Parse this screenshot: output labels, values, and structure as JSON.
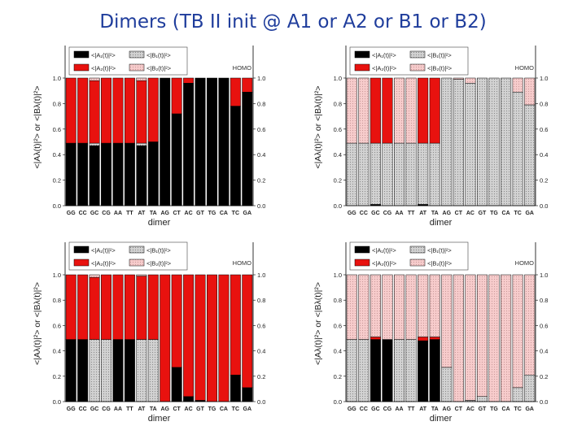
{
  "slide": {
    "title": "Dimers (TB II init @ A1 or A2 or B1 or B2)"
  },
  "colors": {
    "A1": "#000000",
    "A2": "#e8120f",
    "B1": "#c8c8c8",
    "B2": "#f6c3c3",
    "edge": "#000000"
  },
  "legend_labels": {
    "A1": "<|A₁(t)|²>",
    "B1": "<|B₁(t)|²>",
    "A2": "<|A₂(t)|²>",
    "B2": "<|B₂(t)|²>"
  },
  "corner_label": "HOMO",
  "chart_data": [
    {
      "type": "bar",
      "stacked": true,
      "xlabel": "dimer",
      "ylabel": "<|Aλ(t)|²> or <|Bλ(t)|²>",
      "ylim": [
        0,
        1.0
      ],
      "yticks": [
        "0.0",
        "0.2",
        "0.4",
        "0.6",
        "0.8",
        "1.0"
      ],
      "categories": [
        "GG",
        "CC",
        "GC",
        "CG",
        "AA",
        "TT",
        "AT",
        "TA",
        "AG",
        "CT",
        "AC",
        "GT",
        "TG",
        "CA",
        "TC",
        "GA"
      ],
      "series": [
        {
          "key": "A1",
          "values": [
            0.49,
            0.49,
            0.47,
            0.49,
            0.49,
            0.49,
            0.47,
            0.5,
            1.0,
            0.72,
            0.96,
            1.0,
            1.0,
            1.0,
            0.78,
            0.89
          ]
        },
        {
          "key": "B1",
          "values": [
            0.0,
            0.0,
            0.02,
            0.0,
            0.0,
            0.0,
            0.02,
            0.0,
            0.0,
            0.0,
            0.0,
            0.0,
            0.0,
            0.0,
            0.0,
            0.0
          ]
        },
        {
          "key": "A2",
          "values": [
            0.51,
            0.51,
            0.49,
            0.51,
            0.51,
            0.51,
            0.49,
            0.5,
            0.0,
            0.28,
            0.04,
            0.0,
            0.0,
            0.0,
            0.22,
            0.11
          ]
        },
        {
          "key": "B2",
          "values": [
            0.0,
            0.0,
            0.02,
            0.0,
            0.0,
            0.0,
            0.02,
            0.0,
            0.0,
            0.0,
            0.0,
            0.0,
            0.0,
            0.0,
            0.0,
            0.0
          ]
        }
      ]
    },
    {
      "type": "bar",
      "stacked": true,
      "xlabel": "dimer",
      "ylabel": "<|Aλ(t)|²> or <|Bλ(t)|²>",
      "ylim": [
        0,
        1.0
      ],
      "yticks": [
        "0.0",
        "0.2",
        "0.4",
        "0.6",
        "0.8",
        "1.0"
      ],
      "categories": [
        "GG",
        "CC",
        "GC",
        "CG",
        "AA",
        "TT",
        "AT",
        "TA",
        "AG",
        "CT",
        "AC",
        "GT",
        "TG",
        "CA",
        "TC",
        "GA"
      ],
      "series": [
        {
          "key": "A1",
          "values": [
            0.0,
            0.0,
            0.01,
            0.0,
            0.0,
            0.0,
            0.01,
            0.0,
            0.0,
            0.0,
            0.0,
            0.0,
            0.0,
            0.0,
            0.0,
            0.0
          ]
        },
        {
          "key": "B1",
          "values": [
            0.49,
            0.49,
            0.48,
            0.49,
            0.49,
            0.49,
            0.48,
            0.49,
            1.0,
            0.99,
            0.96,
            1.0,
            1.0,
            1.0,
            0.89,
            0.79
          ]
        },
        {
          "key": "A2",
          "values": [
            0.0,
            0.0,
            0.51,
            0.51,
            0.0,
            0.0,
            0.51,
            0.51,
            0.0,
            0.0,
            0.0,
            0.0,
            0.0,
            0.0,
            0.0,
            0.0
          ]
        },
        {
          "key": "B2",
          "values": [
            0.51,
            0.51,
            0.0,
            0.0,
            0.51,
            0.51,
            0.0,
            0.0,
            0.0,
            0.01,
            0.04,
            0.0,
            0.0,
            0.0,
            0.11,
            0.21
          ]
        }
      ]
    },
    {
      "type": "bar",
      "stacked": true,
      "xlabel": "dimer",
      "ylabel": "<|Aλ(t)|²> or <|Bλ(t)|²>",
      "ylim": [
        0,
        1.0
      ],
      "yticks": [
        "0.0",
        "0.2",
        "0.4",
        "0.6",
        "0.8",
        "1.0"
      ],
      "categories": [
        "GG",
        "CC",
        "GC",
        "CG",
        "AA",
        "TT",
        "AT",
        "TA",
        "AG",
        "CT",
        "AC",
        "GT",
        "TG",
        "CA",
        "TC",
        "GA"
      ],
      "series": [
        {
          "key": "A1",
          "values": [
            0.49,
            0.49,
            0.0,
            0.0,
            0.49,
            0.49,
            0.0,
            0.0,
            0.0,
            0.27,
            0.04,
            0.01,
            0.0,
            0.0,
            0.21,
            0.11
          ]
        },
        {
          "key": "B1",
          "values": [
            0.0,
            0.0,
            0.49,
            0.49,
            0.0,
            0.0,
            0.49,
            0.49,
            0.0,
            0.0,
            0.0,
            0.0,
            0.0,
            0.0,
            0.0,
            0.0
          ]
        },
        {
          "key": "A2",
          "values": [
            0.51,
            0.51,
            0.49,
            0.51,
            0.51,
            0.51,
            0.5,
            0.51,
            1.0,
            0.73,
            0.96,
            0.99,
            1.0,
            1.0,
            0.79,
            0.89
          ]
        },
        {
          "key": "B2",
          "values": [
            0.0,
            0.0,
            0.02,
            0.0,
            0.0,
            0.0,
            0.01,
            0.0,
            0.0,
            0.0,
            0.0,
            0.0,
            0.0,
            0.0,
            0.0,
            0.0
          ]
        }
      ]
    },
    {
      "type": "bar",
      "stacked": true,
      "xlabel": "dimer",
      "ylabel": "<|Aλ(t)|²> or <|Bλ(t)|²>",
      "ylim": [
        0,
        1.0
      ],
      "yticks": [
        "0.0",
        "0.2",
        "0.4",
        "0.6",
        "0.8",
        "1.0"
      ],
      "categories": [
        "GG",
        "CC",
        "GC",
        "CG",
        "AA",
        "TT",
        "AT",
        "TA",
        "AG",
        "CT",
        "AC",
        "GT",
        "TG",
        "CA",
        "TC",
        "GA"
      ],
      "series": [
        {
          "key": "A1",
          "values": [
            0.0,
            0.0,
            0.49,
            0.49,
            0.0,
            0.0,
            0.48,
            0.49,
            0.0,
            0.0,
            0.0,
            0.0,
            0.0,
            0.0,
            0.0,
            0.0
          ]
        },
        {
          "key": "B1",
          "values": [
            0.49,
            0.49,
            0.0,
            0.0,
            0.49,
            0.49,
            0.0,
            0.0,
            0.27,
            0.0,
            0.01,
            0.04,
            0.0,
            0.0,
            0.11,
            0.21
          ]
        },
        {
          "key": "A2",
          "values": [
            0.0,
            0.0,
            0.02,
            0.0,
            0.0,
            0.0,
            0.03,
            0.02,
            0.0,
            0.0,
            0.0,
            0.0,
            0.0,
            0.0,
            0.0,
            0.0
          ]
        },
        {
          "key": "B2",
          "values": [
            0.51,
            0.51,
            0.49,
            0.51,
            0.51,
            0.51,
            0.49,
            0.49,
            0.73,
            1.0,
            0.99,
            0.96,
            1.0,
            1.0,
            0.89,
            0.79
          ]
        }
      ]
    }
  ]
}
